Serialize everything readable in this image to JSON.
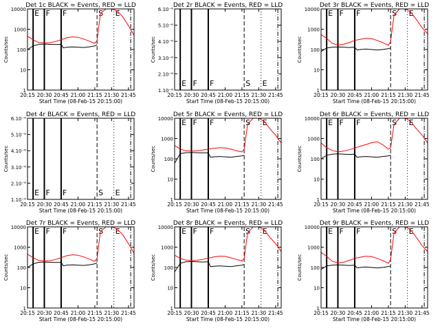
{
  "xlabel": "Start Time (08-Feb-15 20:15:00)",
  "ylabel": "Counts/sec",
  "x_ticks": [
    "20:15",
    "20:30",
    "20:45",
    "21:00",
    "21:15",
    "21:30",
    "21:45"
  ],
  "colors": {
    "events": "#000000",
    "lld": "#ff0000"
  },
  "chart_data": [
    {
      "type": "line",
      "title": "Det 1c BLACK = Events, RED = LLD",
      "yscale": "log",
      "ylim": [
        1,
        10000
      ],
      "y_ticks": [
        "1",
        "10",
        "100",
        "1000",
        "10000"
      ],
      "markers": [
        {
          "label": "E",
          "t": 5,
          "style": "solid"
        },
        {
          "label": "F",
          "t": 15,
          "style": "solid"
        },
        {
          "label": "F",
          "t": 30,
          "style": "solid"
        },
        {
          "label": "S",
          "t": 62,
          "style": "dashed"
        },
        {
          "label": "E",
          "t": 77,
          "style": "dotted"
        },
        {
          "label": "",
          "t": 92,
          "style": "dashdot"
        }
      ],
      "series": [
        {
          "role": "lld",
          "x": [
            0,
            5,
            10,
            15,
            20,
            25,
            30,
            35,
            40,
            45,
            50,
            55,
            60,
            62,
            65,
            70,
            75,
            80,
            85,
            90,
            95
          ],
          "y": [
            450,
            300,
            220,
            210,
            215,
            250,
            300,
            380,
            420,
            400,
            330,
            260,
            200,
            280,
            6000,
            15000,
            12000,
            8000,
            4000,
            1500,
            500
          ]
        },
        {
          "role": "events",
          "x": [
            0,
            5,
            10,
            15,
            20,
            25,
            30,
            32,
            35,
            40,
            45,
            50,
            55,
            60,
            62
          ],
          "y": [
            100,
            150,
            180,
            185,
            180,
            175,
            180,
            120,
            130,
            135,
            130,
            125,
            135,
            150,
            170
          ]
        }
      ]
    },
    {
      "type": "line",
      "title": "Det 2r BLACK = Events, RED = LLD",
      "yscale": "log",
      "ylim": [
        1e-06,
        6e-06
      ],
      "y_ticks": [
        "1.10⁻⁶",
        "2.10⁻⁶",
        "3.10⁻⁶",
        "4.10⁻⁶",
        "5.10⁻⁶",
        "6.10⁻⁶"
      ],
      "markers": [
        {
          "label": "E",
          "t": 5,
          "style": "solid"
        },
        {
          "label": "F",
          "t": 15,
          "style": "solid"
        },
        {
          "label": "F",
          "t": 30,
          "style": "solid"
        },
        {
          "label": "S",
          "t": 62,
          "style": "dashed"
        },
        {
          "label": "E",
          "t": 77,
          "style": "dotted"
        },
        {
          "label": "",
          "t": 92,
          "style": "dashdot"
        }
      ],
      "series": []
    },
    {
      "type": "line",
      "title": "Det 3r BLACK = Events, RED = LLD",
      "yscale": "log",
      "ylim": [
        1,
        10000
      ],
      "y_ticks": [
        "1",
        "10",
        "100",
        "1000",
        "10000"
      ],
      "markers": [
        {
          "label": "E",
          "t": 5,
          "style": "solid"
        },
        {
          "label": "F",
          "t": 15,
          "style": "solid"
        },
        {
          "label": "F",
          "t": 30,
          "style": "solid"
        },
        {
          "label": "S",
          "t": 62,
          "style": "dashed"
        },
        {
          "label": "E",
          "t": 77,
          "style": "dotted"
        },
        {
          "label": "",
          "t": 92,
          "style": "dashdot"
        }
      ],
      "series": [
        {
          "role": "lld",
          "x": [
            0,
            5,
            10,
            15,
            20,
            25,
            30,
            35,
            40,
            45,
            50,
            55,
            60,
            62,
            65,
            70,
            75,
            80,
            85,
            90,
            95
          ],
          "y": [
            550,
            350,
            200,
            170,
            180,
            220,
            280,
            320,
            360,
            340,
            280,
            220,
            160,
            250,
            5000,
            12000,
            10000,
            7000,
            3000,
            1200,
            600
          ]
        },
        {
          "role": "events",
          "x": [
            0,
            5,
            10,
            15,
            20,
            25,
            30,
            32,
            35,
            40,
            45,
            50,
            55,
            60,
            62
          ],
          "y": [
            80,
            120,
            130,
            135,
            130,
            125,
            130,
            95,
            100,
            105,
            100,
            95,
            100,
            110,
            120
          ]
        }
      ]
    },
    {
      "type": "line",
      "title": "Det 4r BLACK = Events, RED = LLD",
      "yscale": "log",
      "ylim": [
        1e-06,
        6e-06
      ],
      "y_ticks": [
        "1.10⁻⁶",
        "2.10⁻⁶",
        "3.10⁻⁶",
        "4.10⁻⁶",
        "5.10⁻⁶",
        "6.10⁻⁶"
      ],
      "markers": [
        {
          "label": "E",
          "t": 5,
          "style": "solid"
        },
        {
          "label": "F",
          "t": 15,
          "style": "solid"
        },
        {
          "label": "F",
          "t": 30,
          "style": "solid"
        },
        {
          "label": "S",
          "t": 62,
          "style": "dashed"
        },
        {
          "label": "E",
          "t": 77,
          "style": "dotted"
        },
        {
          "label": "",
          "t": 92,
          "style": "dashdot"
        }
      ],
      "series": []
    },
    {
      "type": "line",
      "title": "Det 5r BLACK = Events, RED = LLD",
      "yscale": "log",
      "ylim": [
        1,
        10000
      ],
      "y_ticks": [
        "1",
        "10",
        "100",
        "1000",
        "10000"
      ],
      "markers": [
        {
          "label": "E",
          "t": 5,
          "style": "solid"
        },
        {
          "label": "F",
          "t": 15,
          "style": "solid"
        },
        {
          "label": "F",
          "t": 30,
          "style": "solid"
        },
        {
          "label": "S",
          "t": 62,
          "style": "dashed"
        },
        {
          "label": "E",
          "t": 77,
          "style": "dotted"
        },
        {
          "label": "",
          "t": 92,
          "style": "dashdot"
        }
      ],
      "series": [
        {
          "role": "lld",
          "x": [
            0,
            5,
            10,
            15,
            20,
            25,
            30,
            35,
            40,
            45,
            50,
            55,
            60,
            62,
            65,
            70,
            75,
            80,
            85,
            90,
            95
          ],
          "y": [
            450,
            300,
            250,
            240,
            250,
            270,
            300,
            330,
            350,
            340,
            300,
            250,
            220,
            300,
            5000,
            12000,
            10000,
            7000,
            3000,
            1500,
            600
          ]
        },
        {
          "role": "events",
          "x": [
            0,
            5,
            10,
            15,
            20,
            25,
            30,
            32,
            35,
            40,
            45,
            50,
            55,
            60,
            62
          ],
          "y": [
            60,
            180,
            200,
            205,
            200,
            195,
            200,
            120,
            125,
            130,
            125,
            120,
            130,
            140,
            150
          ]
        }
      ]
    },
    {
      "type": "line",
      "title": "Det 6r BLACK = Events, RED = LLD",
      "yscale": "log",
      "ylim": [
        1,
        10000
      ],
      "y_ticks": [
        "1",
        "10",
        "100",
        "1000",
        "10000"
      ],
      "markers": [
        {
          "label": "E",
          "t": 5,
          "style": "solid"
        },
        {
          "label": "F",
          "t": 15,
          "style": "solid"
        },
        {
          "label": "F",
          "t": 30,
          "style": "solid"
        },
        {
          "label": "S",
          "t": 62,
          "style": "dashed"
        },
        {
          "label": "E",
          "t": 77,
          "style": "dotted"
        },
        {
          "label": "",
          "t": 92,
          "style": "dashdot"
        }
      ],
      "series": [
        {
          "role": "lld",
          "x": [
            0,
            5,
            10,
            15,
            20,
            25,
            30,
            35,
            40,
            45,
            50,
            55,
            60,
            62,
            65,
            70,
            75,
            80,
            85,
            90,
            95
          ],
          "y": [
            600,
            350,
            260,
            220,
            240,
            280,
            340,
            420,
            500,
            620,
            700,
            500,
            300,
            350,
            5000,
            12000,
            10000,
            7000,
            3000,
            1500,
            600
          ]
        },
        {
          "role": "events",
          "x": [
            0,
            5,
            10,
            15,
            20,
            25,
            30,
            32,
            35,
            40,
            45,
            50,
            55,
            60,
            62
          ],
          "y": [
            100,
            150,
            170,
            175,
            170,
            165,
            170,
            120,
            125,
            130,
            125,
            120,
            130,
            140,
            150
          ]
        }
      ]
    },
    {
      "type": "line",
      "title": "Det 7r BLACK = Events, RED = LLD",
      "yscale": "log",
      "ylim": [
        1,
        10000
      ],
      "y_ticks": [
        "1",
        "10",
        "100",
        "1000",
        "10000"
      ],
      "markers": [
        {
          "label": "E",
          "t": 5,
          "style": "solid"
        },
        {
          "label": "F",
          "t": 15,
          "style": "solid"
        },
        {
          "label": "F",
          "t": 30,
          "style": "solid"
        },
        {
          "label": "S",
          "t": 62,
          "style": "dashed"
        },
        {
          "label": "E",
          "t": 77,
          "style": "dotted"
        },
        {
          "label": "",
          "t": 92,
          "style": "dashdot"
        }
      ],
      "series": [
        {
          "role": "lld",
          "x": [
            0,
            5,
            10,
            15,
            20,
            25,
            30,
            35,
            40,
            45,
            50,
            55,
            60,
            62,
            65,
            70,
            75,
            80,
            85,
            90,
            95
          ],
          "y": [
            450,
            300,
            220,
            210,
            215,
            250,
            300,
            380,
            420,
            400,
            330,
            260,
            200,
            280,
            6000,
            15000,
            12000,
            8000,
            4000,
            1500,
            500
          ]
        },
        {
          "role": "events",
          "x": [
            0,
            5,
            10,
            15,
            20,
            25,
            30,
            32,
            35,
            40,
            45,
            50,
            55,
            60,
            62
          ],
          "y": [
            100,
            150,
            180,
            185,
            180,
            175,
            180,
            120,
            130,
            135,
            130,
            125,
            135,
            150,
            170
          ]
        }
      ]
    },
    {
      "type": "line",
      "title": "Det 8r BLACK = Events, RED = LLD",
      "yscale": "log",
      "ylim": [
        1,
        10000
      ],
      "y_ticks": [
        "1",
        "10",
        "100",
        "1000",
        "10000"
      ],
      "markers": [
        {
          "label": "E",
          "t": 5,
          "style": "solid"
        },
        {
          "label": "F",
          "t": 15,
          "style": "solid"
        },
        {
          "label": "F",
          "t": 30,
          "style": "solid"
        },
        {
          "label": "S",
          "t": 62,
          "style": "dashed"
        },
        {
          "label": "E",
          "t": 77,
          "style": "dotted"
        },
        {
          "label": "",
          "t": 92,
          "style": "dashdot"
        }
      ],
      "series": [
        {
          "role": "lld",
          "x": [
            0,
            5,
            10,
            15,
            20,
            25,
            30,
            35,
            40,
            45,
            50,
            55,
            60,
            62,
            65,
            70,
            75,
            80,
            85,
            90,
            95
          ],
          "y": [
            400,
            280,
            230,
            220,
            225,
            250,
            290,
            330,
            360,
            350,
            300,
            250,
            210,
            280,
            5000,
            12000,
            10000,
            7000,
            3000,
            1500,
            600
          ]
        },
        {
          "role": "events",
          "x": [
            0,
            5,
            10,
            15,
            20,
            25,
            30,
            32,
            35,
            40,
            45,
            50,
            55,
            60,
            62
          ],
          "y": [
            60,
            160,
            190,
            195,
            190,
            185,
            190,
            110,
            115,
            120,
            115,
            110,
            120,
            130,
            140
          ]
        }
      ]
    },
    {
      "type": "line",
      "title": "Det 9r BLACK = Events, RED = LLD",
      "yscale": "log",
      "ylim": [
        1,
        10000
      ],
      "y_ticks": [
        "1",
        "10",
        "100",
        "1000",
        "10000"
      ],
      "markers": [
        {
          "label": "E",
          "t": 5,
          "style": "solid"
        },
        {
          "label": "F",
          "t": 15,
          "style": "solid"
        },
        {
          "label": "F",
          "t": 30,
          "style": "solid"
        },
        {
          "label": "S",
          "t": 62,
          "style": "dashed"
        },
        {
          "label": "E",
          "t": 77,
          "style": "dotted"
        },
        {
          "label": "",
          "t": 92,
          "style": "dashdot"
        }
      ],
      "series": [
        {
          "role": "lld",
          "x": [
            0,
            5,
            10,
            15,
            20,
            25,
            30,
            35,
            40,
            45,
            50,
            55,
            60,
            62,
            65,
            70,
            75,
            80,
            85,
            90,
            95
          ],
          "y": [
            550,
            350,
            200,
            170,
            180,
            220,
            280,
            320,
            360,
            340,
            280,
            220,
            160,
            250,
            5000,
            12000,
            10000,
            7000,
            3000,
            1200,
            600
          ]
        },
        {
          "role": "events",
          "x": [
            0,
            5,
            10,
            15,
            20,
            25,
            30,
            32,
            35,
            40,
            45,
            50,
            55,
            60,
            62
          ],
          "y": [
            80,
            120,
            130,
            135,
            130,
            125,
            130,
            95,
            100,
            105,
            100,
            95,
            100,
            110,
            120
          ]
        }
      ]
    }
  ]
}
